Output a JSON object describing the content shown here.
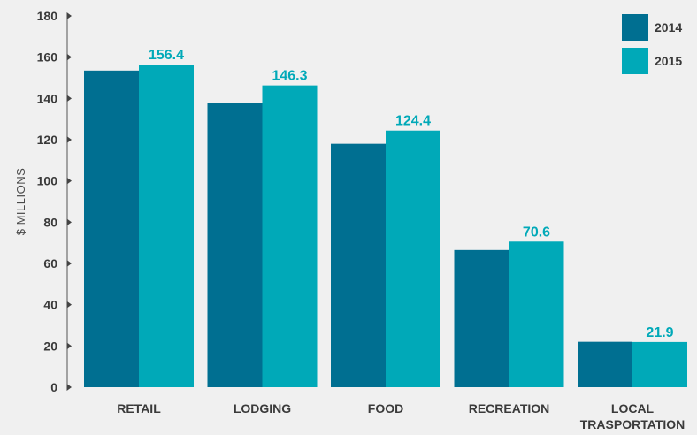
{
  "chart_data": {
    "type": "bar",
    "categories": [
      "RETAIL",
      "LODGING",
      "FOOD",
      "RECREATION",
      "LOCAL TRASPORTATION"
    ],
    "series": [
      {
        "name": "2014",
        "color": "#006f91",
        "values": [
          153.5,
          138,
          118,
          66.5,
          22
        ],
        "data_labels": []
      },
      {
        "name": "2015",
        "color": "#00a9b8",
        "values": [
          156.4,
          146.3,
          124.4,
          70.6,
          21.9
        ],
        "data_labels": [
          "156.4",
          "146.3",
          "124.4",
          "70.6",
          "21.9"
        ]
      }
    ],
    "ylabel": "$ MILLIONS",
    "ylim": [
      0,
      180
    ],
    "yticks": [
      0,
      20,
      40,
      60,
      80,
      100,
      120,
      140,
      160,
      180
    ],
    "legend_position": "top-right",
    "grid": false
  }
}
